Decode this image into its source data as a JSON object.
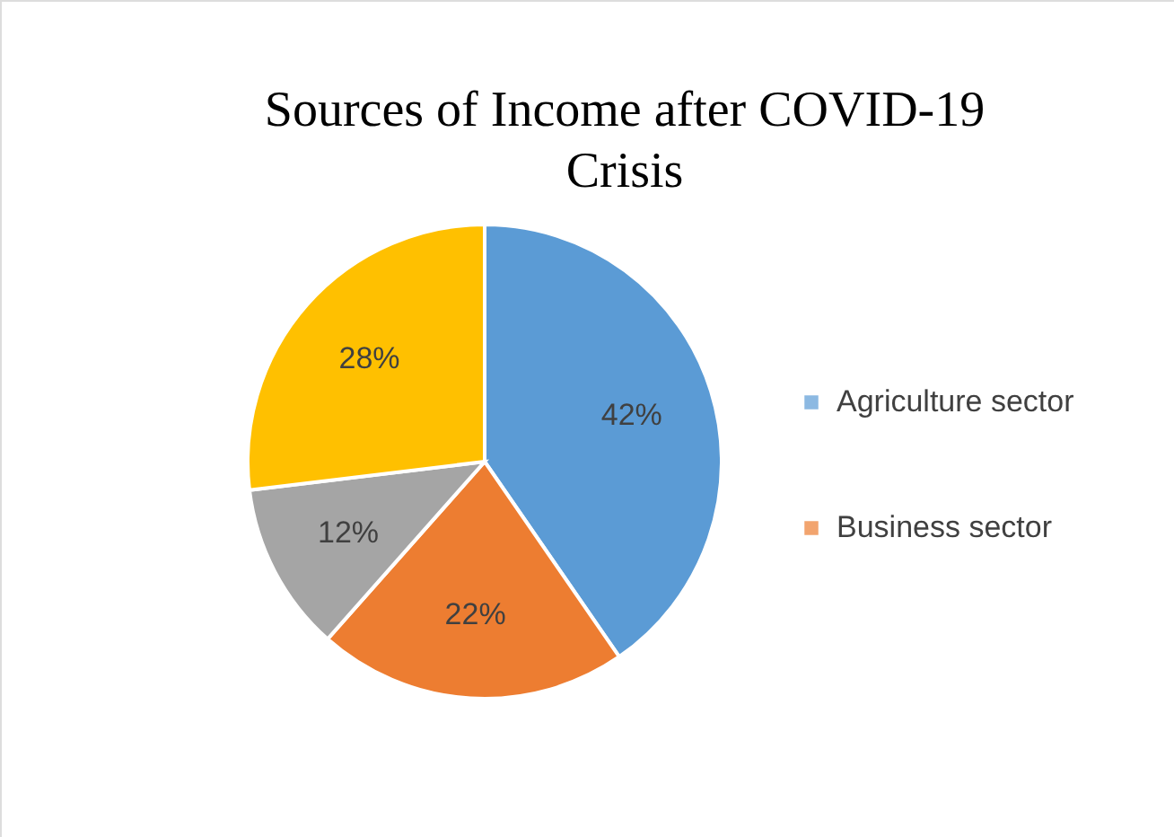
{
  "chart_data": {
    "type": "pie",
    "title": "Sources of Income after COVID-19 Crisis",
    "categories": [
      "Agriculture sector",
      "Business sector",
      null,
      null
    ],
    "values": [
      42,
      22,
      12,
      28
    ],
    "colors": [
      "#5b9bd5",
      "#ed7d31",
      "#a5a5a5",
      "#ffc000"
    ],
    "value_labels": [
      "42%",
      "22%",
      "12%",
      "28%"
    ],
    "legend": "right"
  }
}
